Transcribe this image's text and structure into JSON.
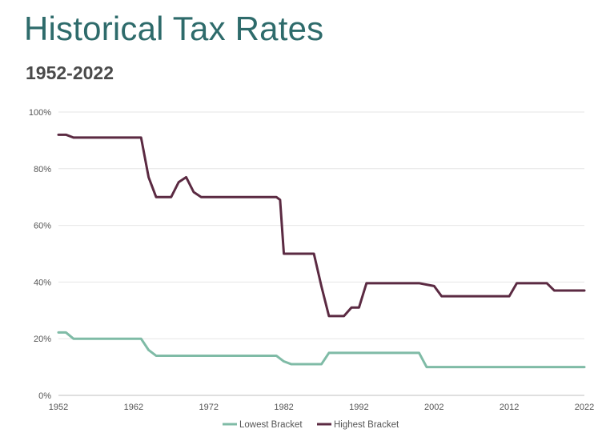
{
  "header": {
    "title": "Historical Tax Rates",
    "subtitle": "1952-2022"
  },
  "colors": {
    "title": "#2e6b6b",
    "lowest": "#7fbba6",
    "highest": "#5b2a42",
    "grid": "#e6e6e6"
  },
  "chart_data": {
    "type": "line",
    "title": "Historical Tax Rates",
    "subtitle": "1952-2022",
    "xlabel": "",
    "ylabel": "",
    "xlim": [
      1952,
      2022
    ],
    "ylim": [
      0,
      100
    ],
    "x_ticks": [
      "1952",
      "1962",
      "1972",
      "1982",
      "1992",
      "2002",
      "2012",
      "2022"
    ],
    "y_ticks": [
      "0%",
      "20%",
      "40%",
      "60%",
      "80%",
      "100%"
    ],
    "grid": true,
    "legend_position": "bottom",
    "series": [
      {
        "name": "Lowest Bracket",
        "color": "#7fbba6",
        "points": [
          [
            1952,
            22.2
          ],
          [
            1953,
            22.2
          ],
          [
            1954,
            20
          ],
          [
            1963,
            20
          ],
          [
            1964,
            16
          ],
          [
            1965,
            14
          ],
          [
            1981,
            14
          ],
          [
            1982,
            12
          ],
          [
            1983,
            11
          ],
          [
            1986,
            11
          ],
          [
            1987,
            11
          ],
          [
            1988,
            15
          ],
          [
            2000,
            15
          ],
          [
            2001,
            10
          ],
          [
            2022,
            10
          ]
        ]
      },
      {
        "name": "Highest Bracket",
        "color": "#5b2a42",
        "points": [
          [
            1952,
            92
          ],
          [
            1953,
            92
          ],
          [
            1954,
            91
          ],
          [
            1963,
            91
          ],
          [
            1964,
            77
          ],
          [
            1965,
            70
          ],
          [
            1967,
            70
          ],
          [
            1968,
            75.25
          ],
          [
            1969,
            77
          ],
          [
            1970,
            71.75
          ],
          [
            1971,
            70
          ],
          [
            1981,
            70
          ],
          [
            1981.5,
            69
          ],
          [
            1982,
            50
          ],
          [
            1986,
            50
          ],
          [
            1987,
            38.5
          ],
          [
            1988,
            28
          ],
          [
            1990,
            28
          ],
          [
            1991,
            31
          ],
          [
            1992,
            31
          ],
          [
            1993,
            39.6
          ],
          [
            2000,
            39.6
          ],
          [
            2001,
            39.1
          ],
          [
            2002,
            38.6
          ],
          [
            2003,
            35
          ],
          [
            2012,
            35
          ],
          [
            2013,
            39.6
          ],
          [
            2017,
            39.6
          ],
          [
            2018,
            37
          ],
          [
            2022,
            37
          ]
        ]
      }
    ]
  }
}
